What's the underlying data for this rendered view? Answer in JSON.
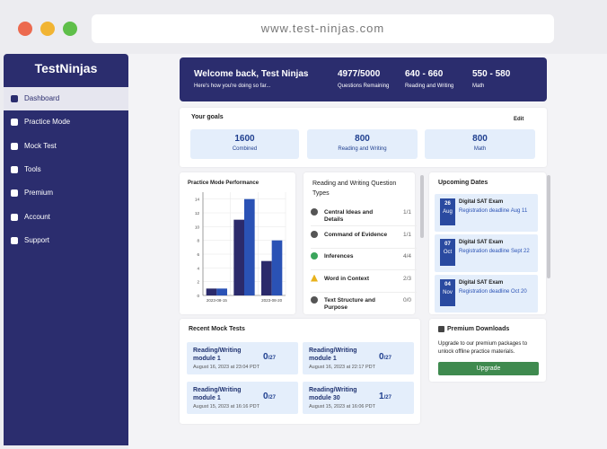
{
  "browser": {
    "url": "www.test-ninjas.com"
  },
  "sidebar": {
    "brand": "TestNinjas",
    "items": [
      "Dashboard",
      "Practice Mode",
      "Mock Test",
      "Tools",
      "Premium",
      "Account",
      "Support"
    ]
  },
  "header": {
    "welcome": "Welcome back, Test Ninjas",
    "subtitle": "Here's how you're doing so far...",
    "stats": [
      {
        "value": "4977/5000",
        "label": "Questions Remaining"
      },
      {
        "value": "640 - 660",
        "label": "Reading and Writing"
      },
      {
        "value": "550 - 580",
        "label": "Math"
      }
    ]
  },
  "goals": {
    "title": "Your goals",
    "edit": "Edit",
    "items": [
      {
        "value": "1600",
        "label": "Combined"
      },
      {
        "value": "800",
        "label": "Reading and Writing"
      },
      {
        "value": "800",
        "label": "Math"
      }
    ]
  },
  "chart_data": {
    "type": "bar",
    "title": "Practice Mode Performance",
    "categories": [
      "2023-08-15",
      null,
      "2023-08-20"
    ],
    "series": [
      {
        "color": "#2b2a6b",
        "values": [
          1,
          11,
          5
        ]
      },
      {
        "color": "#2a52b5",
        "values": [
          1,
          14,
          8
        ]
      }
    ],
    "ylim": [
      0,
      15
    ],
    "yticks": [
      0,
      2,
      4,
      6,
      8,
      10,
      12,
      14
    ],
    "grid": true
  },
  "question_types": {
    "title": "Reading and Writing Question Types",
    "items": [
      {
        "label": "Central Ideas and Details",
        "score": "1/1"
      },
      {
        "label": "Command of Evidence",
        "score": "1/1"
      },
      {
        "label": "Inferences",
        "score": "4/4"
      },
      {
        "label": "Word in Context",
        "score": "2/3"
      },
      {
        "label": "Text Structure and Purpose",
        "score": "0/0"
      }
    ]
  },
  "upcoming": {
    "title": "Upcoming Dates",
    "items": [
      {
        "day": "26",
        "month": "Aug",
        "title": "Digital SAT Exam",
        "detail": "Registration deadline Aug 11"
      },
      {
        "day": "07",
        "month": "Oct",
        "title": "Digital SAT Exam",
        "detail": "Registration deadline Sept 22"
      },
      {
        "day": "04",
        "month": "Nov",
        "title": "Digital SAT Exam",
        "detail": "Registration deadline Oct 20"
      }
    ]
  },
  "recent": {
    "title": "Recent Mock Tests",
    "items": [
      {
        "name": "Reading/Writing module 1",
        "score": "0",
        "total": "/27",
        "date": "August 16, 2023 at 23:04 PDT"
      },
      {
        "name": "Reading/Writing module 1",
        "score": "0",
        "total": "/27",
        "date": "August 16, 2023 at 22:17 PDT"
      },
      {
        "name": "Reading/Writing module 1",
        "score": "0",
        "total": "/27",
        "date": "August 15, 2023 at 16:16 PDT"
      },
      {
        "name": "Reading/Writing module 30",
        "score": "1",
        "total": "/27",
        "date": "August 15, 2023 at 16:06 PDT"
      }
    ]
  },
  "premium": {
    "title": "Premium Downloads",
    "text": "Upgrade to our premium packages to unlock offline practice materials.",
    "button": "Upgrade"
  }
}
